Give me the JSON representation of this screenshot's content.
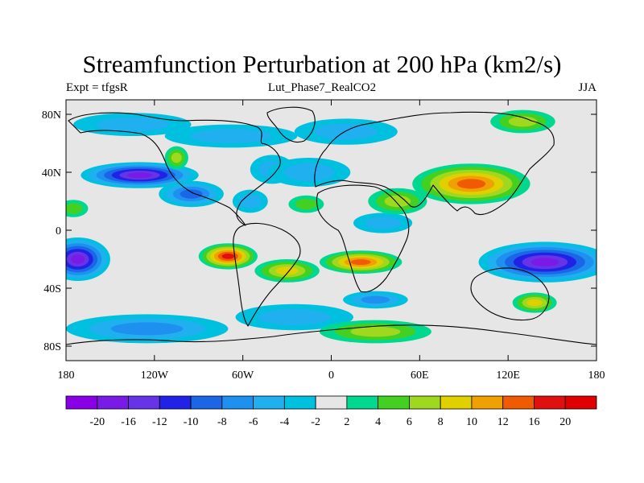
{
  "title": "Streamfunction Perturbation at 200 hPa (km2/s)",
  "subtitle_left": "Expt = tfgsR",
  "subtitle_center": "Lut_Phase7_RealCO2",
  "subtitle_right": "JJA",
  "chart_data": {
    "type": "heatmap",
    "projection": "cylindrical-equidistant",
    "variable": "Streamfunction Perturbation at 200 hPa",
    "units": "km2/s",
    "season": "JJA",
    "x_range": [
      -180,
      180
    ],
    "y_range": [
      -90,
      90
    ],
    "x_ticks": [
      {
        "value": -180,
        "label": "180"
      },
      {
        "value": -120,
        "label": "120W"
      },
      {
        "value": -60,
        "label": "60W"
      },
      {
        "value": 0,
        "label": "0"
      },
      {
        "value": 60,
        "label": "60E"
      },
      {
        "value": 120,
        "label": "120E"
      },
      {
        "value": 180,
        "label": "180"
      }
    ],
    "y_ticks": [
      {
        "value": 80,
        "label": "80N"
      },
      {
        "value": 40,
        "label": "40N"
      },
      {
        "value": 0,
        "label": "0"
      },
      {
        "value": -40,
        "label": "40S"
      },
      {
        "value": -80,
        "label": "80S"
      }
    ],
    "contour_levels": [
      -20,
      -16,
      -12,
      -10,
      -8,
      -6,
      -4,
      -2,
      2,
      4,
      6,
      8,
      10,
      12,
      16,
      20
    ],
    "colorbar_labels": [
      "-20",
      "-16",
      "-12",
      "-10",
      "-8",
      "-6",
      "-4",
      "-2",
      "2",
      "4",
      "6",
      "8",
      "10",
      "12",
      "16",
      "20"
    ],
    "colors": [
      "#8a00e6",
      "#7a1ae6",
      "#6633e6",
      "#2222e6",
      "#1a66e6",
      "#1e90f0",
      "#20b0f0",
      "#00c0e0",
      "#e6e6e6",
      "#00d890",
      "#44d020",
      "#a0d820",
      "#e0d000",
      "#f0a000",
      "#f05a00",
      "#e01010",
      "#e00000"
    ],
    "features": [
      {
        "lon": -130,
        "lat": 38,
        "rlon": 40,
        "rlat": 9,
        "value": -17
      },
      {
        "lon": -95,
        "lat": 25,
        "rlon": 22,
        "rlat": 9,
        "value": -9
      },
      {
        "lon": -125,
        "lat": -68,
        "rlon": 55,
        "rlat": 10,
        "value": -6
      },
      {
        "lon": -68,
        "lat": 65,
        "rlon": 45,
        "rlat": 8,
        "value": -5
      },
      {
        "lon": -135,
        "lat": 73,
        "rlon": 40,
        "rlat": 8,
        "value": -4
      },
      {
        "lon": -55,
        "lat": 20,
        "rlon": 12,
        "rlat": 8,
        "value": -4
      },
      {
        "lon": -40,
        "lat": 42,
        "rlon": 15,
        "rlat": 10,
        "value": -5
      },
      {
        "lon": -15,
        "lat": 40,
        "rlon": 28,
        "rlat": 10,
        "value": -4
      },
      {
        "lon": 10,
        "lat": 68,
        "rlon": 35,
        "rlat": 9,
        "value": -5
      },
      {
        "lon": -25,
        "lat": -60,
        "rlon": 40,
        "rlat": 9,
        "value": -5
      },
      {
        "lon": 30,
        "lat": -48,
        "rlon": 22,
        "rlat": 6,
        "value": -6
      },
      {
        "lon": 35,
        "lat": 5,
        "rlon": 20,
        "rlat": 7,
        "value": -4
      },
      {
        "lon": 145,
        "lat": -22,
        "rlon": 45,
        "rlat": 14,
        "value": -18
      },
      {
        "lon": -172,
        "lat": -20,
        "rlon": 22,
        "rlat": 15,
        "value": -18
      },
      {
        "lon": -105,
        "lat": 50,
        "rlon": 8,
        "rlat": 8,
        "value": 6
      },
      {
        "lon": 45,
        "lat": 20,
        "rlon": 20,
        "rlat": 9,
        "value": 6
      },
      {
        "lon": 30,
        "lat": -70,
        "rlon": 38,
        "rlat": 8,
        "value": 6
      },
      {
        "lon": 138,
        "lat": -50,
        "rlon": 15,
        "rlat": 7,
        "value": 8
      },
      {
        "lon": -17,
        "lat": 18,
        "rlon": 12,
        "rlat": 6,
        "value": 4
      },
      {
        "lon": -175,
        "lat": 15,
        "rlon": 10,
        "rlat": 6,
        "value": 4
      },
      {
        "lon": 130,
        "lat": 75,
        "rlon": 22,
        "rlat": 8,
        "value": 6
      },
      {
        "lon": 95,
        "lat": 32,
        "rlon": 40,
        "rlat": 14,
        "value": 14
      },
      {
        "lon": -70,
        "lat": -18,
        "rlon": 20,
        "rlat": 9,
        "value": 19
      },
      {
        "lon": 20,
        "lat": -22,
        "rlon": 28,
        "rlat": 8,
        "value": 14
      },
      {
        "lon": -30,
        "lat": -28,
        "rlon": 22,
        "rlat": 8,
        "value": 8
      }
    ]
  }
}
